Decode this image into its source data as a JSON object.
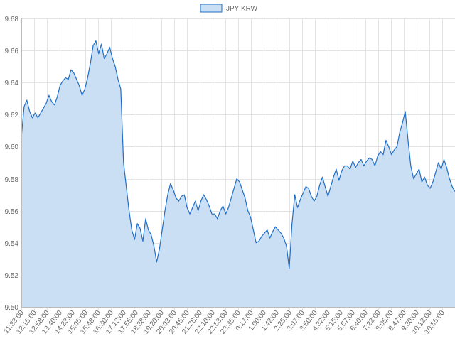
{
  "chart_data": {
    "type": "area",
    "legend": {
      "label": "JPY KRW",
      "placement": "top-center"
    },
    "y_ticks": [
      9.5,
      9.52,
      9.54,
      9.56,
      9.58,
      9.6,
      9.62,
      9.64,
      9.66,
      9.68
    ],
    "y_tick_labels": [
      "9.50",
      "9.52",
      "9.54",
      "9.56",
      "9.58",
      "9.60",
      "9.62",
      "9.64",
      "9.66",
      "9.68"
    ],
    "ylim": [
      9.5,
      9.68
    ],
    "x_tick_labels": [
      "11:33:00",
      "12:15:00",
      "12:58:00",
      "13:40:00",
      "14:23:00",
      "15:05:00",
      "15:48:00",
      "16:30:00",
      "17:13:00",
      "17:55:00",
      "18:38:00",
      "19:20:00",
      "20:03:00",
      "20:45:00",
      "21:28:00",
      "22:10:00",
      "22:53:00",
      "23:35:00",
      "0:17:00",
      "1:00:00",
      "1:42:00",
      "2:25:00",
      "3:07:00",
      "3:50:00",
      "4:32:00",
      "5:15:00",
      "5:57:00",
      "6:40:00",
      "7:22:00",
      "8:05:00",
      "8:47:00",
      "9:30:00",
      "10:12:00",
      "10:55:00"
    ],
    "grid": true,
    "colors": {
      "line": "#1f6fc9",
      "fill": "#cbdff4",
      "grid": "#e3e3e3",
      "axis": "#bbbbbb"
    },
    "series": [
      {
        "name": "JPY KRW",
        "values": [
          9.606,
          9.625,
          9.629,
          9.622,
          9.618,
          9.621,
          9.618,
          9.621,
          9.624,
          9.627,
          9.632,
          9.628,
          9.626,
          9.631,
          9.638,
          9.641,
          9.643,
          9.642,
          9.648,
          9.646,
          9.642,
          9.638,
          9.632,
          9.636,
          9.643,
          9.652,
          9.663,
          9.666,
          9.658,
          9.664,
          9.655,
          9.658,
          9.662,
          9.655,
          9.65,
          9.642,
          9.636,
          9.59,
          9.575,
          9.56,
          9.548,
          9.542,
          9.552,
          9.549,
          9.541,
          9.555,
          9.548,
          9.545,
          9.538,
          9.528,
          9.536,
          9.548,
          9.56,
          9.57,
          9.577,
          9.573,
          9.568,
          9.566,
          9.569,
          9.57,
          9.562,
          9.558,
          9.562,
          9.566,
          9.56,
          9.566,
          9.57,
          9.567,
          9.563,
          9.558,
          9.558,
          9.555,
          9.56,
          9.563,
          9.558,
          9.562,
          9.568,
          9.574,
          9.58,
          9.578,
          9.573,
          9.568,
          9.56,
          9.556,
          9.548,
          9.54,
          9.541,
          9.544,
          9.546,
          9.548,
          9.543,
          9.547,
          9.55,
          9.548,
          9.546,
          9.543,
          9.538,
          9.524,
          9.552,
          9.57,
          9.562,
          9.567,
          9.571,
          9.575,
          9.574,
          9.569,
          9.566,
          9.569,
          9.576,
          9.581,
          9.575,
          9.569,
          9.575,
          9.581,
          9.586,
          9.579,
          9.585,
          9.588,
          9.588,
          9.586,
          9.591,
          9.587,
          9.59,
          9.592,
          9.588,
          9.591,
          9.593,
          9.592,
          9.588,
          9.594,
          9.597,
          9.595,
          9.604,
          9.6,
          9.595,
          9.598,
          9.6,
          9.609,
          9.615,
          9.622,
          9.604,
          9.588,
          9.58,
          9.583,
          9.586,
          9.578,
          9.581,
          9.576,
          9.574,
          9.578,
          9.584,
          9.59,
          9.586,
          9.592,
          9.587,
          9.58,
          9.575,
          9.572
        ]
      }
    ]
  }
}
